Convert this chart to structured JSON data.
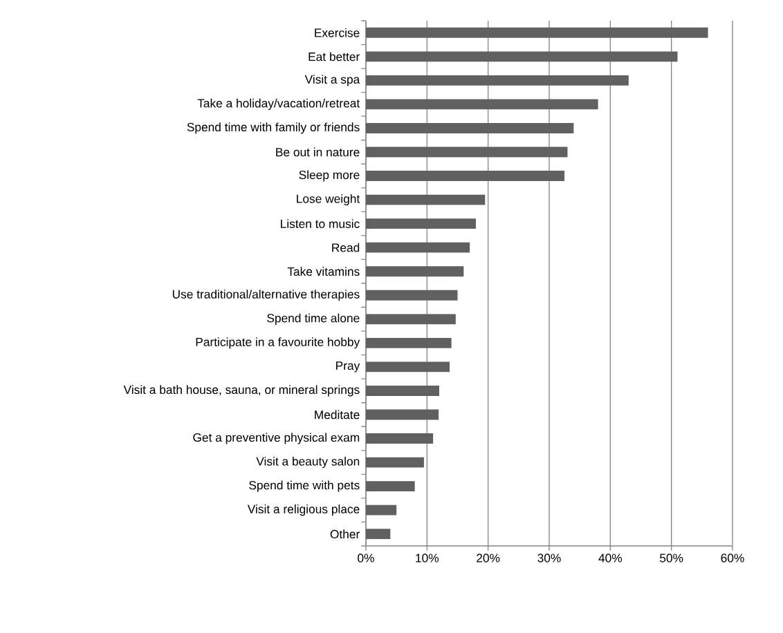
{
  "chart_data": {
    "type": "bar",
    "orientation": "horizontal",
    "categories": [
      "Exercise",
      "Eat better",
      "Visit a spa",
      "Take a holiday/vacation/retreat",
      "Spend time with family or friends",
      "Be out in nature",
      "Sleep more",
      "Lose weight",
      "Listen to music",
      "Read",
      "Take vitamins",
      "Use traditional/alternative therapies",
      "Spend time alone",
      "Participate in a favourite hobby",
      "Pray",
      "Visit a bath house, sauna, or mineral springs",
      "Meditate",
      "Get a preventive physical exam",
      "Visit a beauty salon",
      "Spend time with pets",
      "Visit a religious place",
      "Other"
    ],
    "values": [
      56,
      51,
      43,
      38,
      34,
      33,
      32.5,
      19.5,
      18,
      17,
      16,
      15,
      14.7,
      14,
      13.7,
      12,
      11.9,
      11,
      9.5,
      8,
      5,
      4
    ],
    "color": "#606060",
    "xlim": [
      0,
      60
    ],
    "xticks": [
      {
        "value": 0,
        "label": "0%"
      },
      {
        "value": 10,
        "label": "10%"
      },
      {
        "value": 20,
        "label": "20%"
      },
      {
        "value": 30,
        "label": "30%"
      },
      {
        "value": 40,
        "label": "40%"
      },
      {
        "value": 50,
        "label": "50%"
      },
      {
        "value": 60,
        "label": "60%"
      }
    ],
    "grid": "x"
  }
}
